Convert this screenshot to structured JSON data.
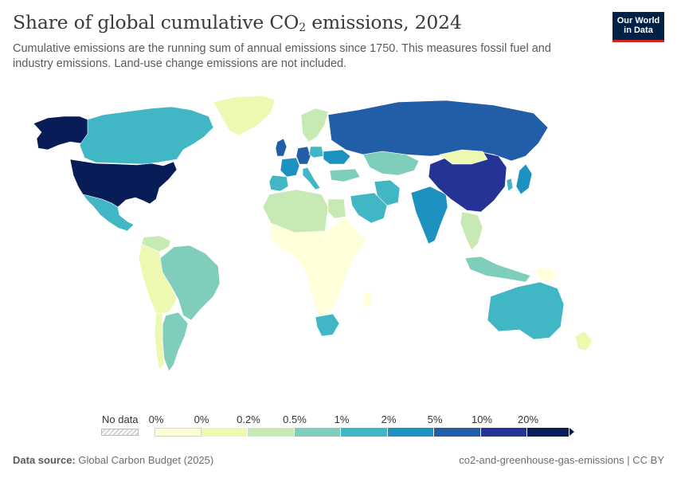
{
  "header": {
    "title_main": "Share of global cumulative CO",
    "title_sub": "2",
    "title_tail": " emissions, 2024",
    "subtitle": "Cumulative emissions are the running sum of annual emissions since 1750. This measures fossil fuel and industry emissions. Land-use change emissions are not included."
  },
  "logo": {
    "line1": "Our World",
    "line2": "in Data",
    "bg_color": "#002147",
    "accent_color": "#ce261e"
  },
  "legend": {
    "no_data_label": "No data",
    "tick_labels": [
      "0%",
      "0%",
      "0.2%",
      "0.5%",
      "1%",
      "2%",
      "5%",
      "10%",
      "20%"
    ],
    "colors": [
      "#ffffd9",
      "#edf8b1",
      "#c7e9b4",
      "#7fcdbb",
      "#41b6c4",
      "#1d91c0",
      "#225ea8",
      "#253494",
      "#081d58"
    ]
  },
  "map_regions": [
    {
      "name": "United States",
      "bin": 8
    },
    {
      "name": "Alaska",
      "bin": 8
    },
    {
      "name": "Canada",
      "bin": 4
    },
    {
      "name": "Mexico",
      "bin": 4
    },
    {
      "name": "Greenland",
      "bin": 1
    },
    {
      "name": "Brazil",
      "bin": 3
    },
    {
      "name": "Argentina",
      "bin": 3
    },
    {
      "name": "Venezuela",
      "bin": 2
    },
    {
      "name": "Chile",
      "bin": 1
    },
    {
      "name": "Rest of South America",
      "bin": 1
    },
    {
      "name": "United Kingdom",
      "bin": 6
    },
    {
      "name": "Germany",
      "bin": 6
    },
    {
      "name": "France",
      "bin": 5
    },
    {
      "name": "Spain",
      "bin": 4
    },
    {
      "name": "Italy",
      "bin": 4
    },
    {
      "name": "Poland",
      "bin": 4
    },
    {
      "name": "Ukraine",
      "bin": 5
    },
    {
      "name": "Scandinavia",
      "bin": 2
    },
    {
      "name": "Russia",
      "bin": 6
    },
    {
      "name": "Kazakhstan",
      "bin": 3
    },
    {
      "name": "Turkey",
      "bin": 3
    },
    {
      "name": "Iran",
      "bin": 4
    },
    {
      "name": "Saudi Arabia",
      "bin": 4
    },
    {
      "name": "India",
      "bin": 5
    },
    {
      "name": "China",
      "bin": 7
    },
    {
      "name": "Mongolia",
      "bin": 1
    },
    {
      "name": "Japan",
      "bin": 5
    },
    {
      "name": "South Korea",
      "bin": 4
    },
    {
      "name": "Southeast Asia",
      "bin": 2
    },
    {
      "name": "Indonesia",
      "bin": 3
    },
    {
      "name": "North Africa",
      "bin": 2
    },
    {
      "name": "Egypt",
      "bin": 2
    },
    {
      "name": "Nigeria",
      "bin": 2
    },
    {
      "name": "Sub-Saharan Africa",
      "bin": 0
    },
    {
      "name": "South Africa",
      "bin": 4
    },
    {
      "name": "Madagascar",
      "bin": 0
    },
    {
      "name": "Australia",
      "bin": 4
    },
    {
      "name": "New Zealand",
      "bin": 1
    },
    {
      "name": "Papua New Guinea",
      "bin": 0
    }
  ],
  "footer": {
    "source_label": "Data source:",
    "source_text": "Global Carbon Budget (2025)",
    "right_text": "co2-and-greenhouse-gas-emissions | CC BY"
  }
}
